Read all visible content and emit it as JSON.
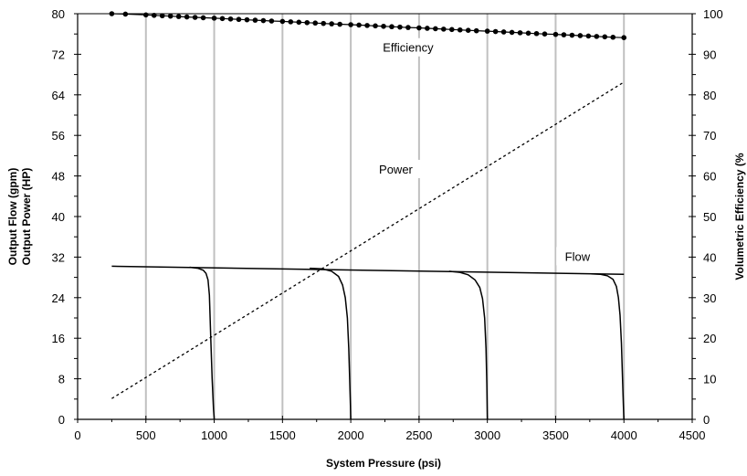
{
  "chart_data": {
    "type": "line",
    "xlabel": "System Pressure (psi)",
    "ylabel_left_line1": "Output Flow (gpm)",
    "ylabel_left_line2": "Output Power (HP)",
    "ylabel_right": "Volumetric Efficiency (%",
    "xlim": [
      0,
      4500
    ],
    "ylim_left": [
      0,
      80
    ],
    "ylim_right": [
      0,
      100
    ],
    "x_ticks": [
      0,
      500,
      1000,
      1500,
      2000,
      2500,
      3000,
      3500,
      4000,
      4500
    ],
    "y_left_ticks": [
      0,
      8,
      16,
      24,
      32,
      40,
      48,
      56,
      64,
      72,
      80
    ],
    "y_right_ticks": [
      0,
      10,
      20,
      30,
      40,
      50,
      60,
      70,
      80,
      90,
      100
    ],
    "grid": "vertical",
    "annotations": [
      {
        "text": "Efficiency",
        "x": 2420,
        "y_left": 73.2
      },
      {
        "text": "Power",
        "x": 2330,
        "y_left": 49.2
      },
      {
        "text": "Flow",
        "x": 3660,
        "y_left": 32.0
      }
    ],
    "series": [
      {
        "key": "efficiency",
        "axis": "right",
        "style": "dotted-markers",
        "x": [
          250,
          350,
          500,
          560,
          620,
          680,
          740,
          800,
          860,
          920,
          1000,
          1060,
          1120,
          1180,
          1240,
          1300,
          1360,
          1420,
          1500,
          1560,
          1620,
          1680,
          1740,
          1800,
          1860,
          1920,
          2000,
          2060,
          2120,
          2180,
          2240,
          2300,
          2360,
          2420,
          2500,
          2560,
          2620,
          2680,
          2740,
          2800,
          2860,
          2920,
          3000,
          3060,
          3120,
          3180,
          3240,
          3300,
          3360,
          3420,
          3500,
          3560,
          3620,
          3680,
          3740,
          3800,
          3860,
          3920,
          4000
        ],
        "y": [
          100.0,
          99.9,
          99.7,
          99.6,
          99.5,
          99.4,
          99.3,
          99.2,
          99.1,
          99.0,
          98.9,
          98.8,
          98.7,
          98.6,
          98.5,
          98.4,
          98.3,
          98.2,
          98.1,
          98.0,
          97.9,
          97.8,
          97.7,
          97.6,
          97.5,
          97.4,
          97.3,
          97.2,
          97.1,
          97.0,
          96.9,
          96.8,
          96.7,
          96.6,
          96.5,
          96.4,
          96.3,
          96.2,
          96.1,
          96.0,
          95.9,
          95.8,
          95.7,
          95.6,
          95.5,
          95.4,
          95.3,
          95.2,
          95.1,
          95.0,
          94.9,
          94.8,
          94.7,
          94.6,
          94.5,
          94.4,
          94.3,
          94.2,
          94.1
        ]
      },
      {
        "key": "power",
        "axis": "left",
        "style": "dashed",
        "x": [
          250,
          4000
        ],
        "y": [
          4.1,
          66.5
        ]
      },
      {
        "key": "flow",
        "axis": "left",
        "style": "solid",
        "x": [
          250,
          4000
        ],
        "y": [
          30.2,
          28.6
        ]
      },
      {
        "key": "relief-1000",
        "axis": "left",
        "style": "solid",
        "x": [
          820,
          880,
          920,
          940,
          955,
          965,
          975,
          985,
          995,
          1000
        ],
        "y": [
          30.0,
          29.8,
          29.4,
          28.8,
          27.5,
          24.5,
          16.0,
          8.0,
          2.0,
          0.0
        ]
      },
      {
        "key": "relief-2000",
        "axis": "left",
        "style": "solid",
        "x": [
          1700,
          1790,
          1860,
          1910,
          1940,
          1960,
          1975,
          1985,
          1992,
          1997,
          2000
        ],
        "y": [
          29.8,
          29.7,
          29.2,
          28.2,
          26.5,
          24.0,
          20.0,
          14.0,
          8.0,
          3.0,
          0.0
        ]
      },
      {
        "key": "relief-3000",
        "axis": "left",
        "style": "solid",
        "x": [
          2720,
          2800,
          2860,
          2910,
          2945,
          2965,
          2980,
          2990,
          2996,
          3000
        ],
        "y": [
          29.2,
          29.0,
          28.5,
          27.5,
          26.0,
          23.8,
          20.0,
          14.0,
          7.0,
          0.0
        ]
      },
      {
        "key": "relief-4000",
        "axis": "left",
        "style": "solid",
        "x": [
          3760,
          3830,
          3880,
          3920,
          3945,
          3960,
          3972,
          3982,
          3990,
          3996,
          4000
        ],
        "y": [
          28.7,
          28.6,
          28.3,
          27.6,
          26.2,
          24.0,
          20.5,
          15.0,
          8.0,
          3.0,
          0.0
        ]
      }
    ]
  }
}
